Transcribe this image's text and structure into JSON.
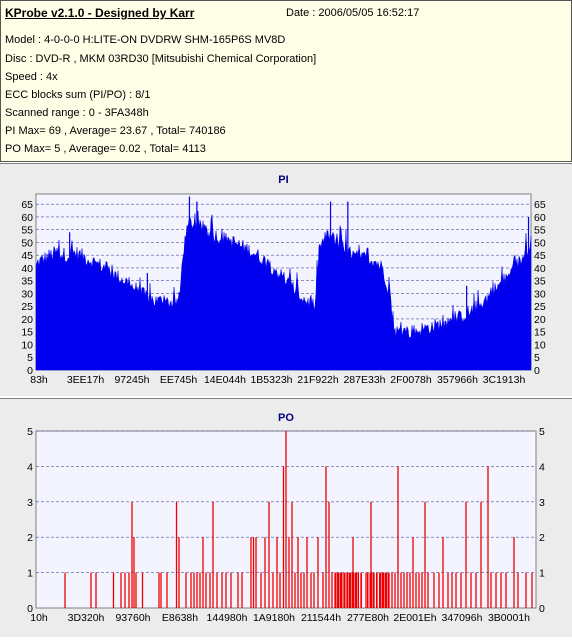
{
  "header": {
    "title": "KProbe v2.1.0 - Designed by Karr",
    "date": "Date : 2006/05/05 16:52:17",
    "lines": [
      "Model : 4-0-0-0 H:LITE-ON DVDRW SHM-165P6S MV8D",
      "Disc : DVD-R , MKM 03RD30   [Mitsubishi Chemical Corporation]",
      "Speed : 4x",
      "ECC blocks sum (PI/PO) : 8/1",
      "Scanned range : 0 - 3FA348h",
      "PI Max= 69 , Average= 23.67 , Total= 740186",
      "PO Max= 5 , Average= 0.02 , Total= 4113"
    ]
  },
  "colors": {
    "pi_series": "#0000ee",
    "po_series": "#ee0000",
    "chart_title": "#000080",
    "plot_bg": "#f4f4ff",
    "grid": "#5050a0",
    "panel_bg": "#ececec"
  },
  "chart_data": [
    {
      "type": "area",
      "title": "PI",
      "xlabel": "",
      "ylabel": "",
      "ylim": [
        0,
        69
      ],
      "yticks": [
        0,
        5,
        10,
        15,
        20,
        25,
        30,
        35,
        40,
        45,
        50,
        55,
        60,
        65
      ],
      "xtick_labels": [
        "83h",
        "3EE17h",
        "97245h",
        "EE745h",
        "14E044h",
        "1B5323h",
        "21F922h",
        "287E33h",
        "2F0078h",
        "357966h",
        "3C1913h"
      ],
      "grid": "horizontal dashed",
      "x_range_hex": [
        "0",
        "3FA348h"
      ],
      "profile": [
        [
          0,
          40
        ],
        [
          0.3,
          42
        ],
        [
          2,
          44
        ],
        [
          4,
          46
        ],
        [
          6,
          45
        ],
        [
          8,
          46
        ],
        [
          10,
          44
        ],
        [
          12,
          42
        ],
        [
          14,
          40
        ],
        [
          16,
          37
        ],
        [
          18,
          35
        ],
        [
          20,
          32
        ],
        [
          22,
          29
        ],
        [
          24,
          27
        ],
        [
          26,
          27
        ],
        [
          28,
          26
        ],
        [
          29,
          28
        ],
        [
          29.8,
          48
        ],
        [
          31,
          58
        ],
        [
          33,
          56
        ],
        [
          35,
          54
        ],
        [
          37,
          52
        ],
        [
          40,
          50
        ],
        [
          42,
          48
        ],
        [
          44,
          46
        ],
        [
          46,
          43
        ],
        [
          48,
          40
        ],
        [
          50,
          36
        ],
        [
          52,
          32
        ],
        [
          54,
          28
        ],
        [
          55.5,
          26
        ],
        [
          56.5,
          25
        ],
        [
          57.2,
          48
        ],
        [
          59,
          53
        ],
        [
          61,
          50
        ],
        [
          63,
          46
        ],
        [
          65,
          44
        ],
        [
          67,
          44
        ],
        [
          69,
          42
        ],
        [
          70,
          40
        ],
        [
          71.5,
          30
        ],
        [
          72.3,
          15
        ],
        [
          74,
          15
        ],
        [
          76,
          15
        ],
        [
          78,
          16
        ],
        [
          80,
          17
        ],
        [
          82,
          18
        ],
        [
          84,
          19
        ],
        [
          86,
          21
        ],
        [
          88,
          23
        ],
        [
          90,
          26
        ],
        [
          92,
          30
        ],
        [
          94,
          34
        ],
        [
          96,
          38
        ],
        [
          97.5,
          42
        ],
        [
          99,
          45
        ],
        [
          100,
          52
        ]
      ],
      "peaks": [
        {
          "x": 6.8,
          "y": 54
        },
        {
          "x": 22.5,
          "y": 38
        },
        {
          "x": 31,
          "y": 68
        },
        {
          "x": 32.5,
          "y": 66
        },
        {
          "x": 34,
          "y": 57
        },
        {
          "x": 59.5,
          "y": 66
        },
        {
          "x": 63,
          "y": 66
        },
        {
          "x": 87,
          "y": 33
        },
        {
          "x": 99.5,
          "y": 60
        }
      ]
    },
    {
      "type": "bar",
      "title": "PO",
      "xlabel": "",
      "ylabel": "",
      "ylim": [
        0,
        5
      ],
      "yticks": [
        0,
        1,
        2,
        3,
        4,
        5
      ],
      "xtick_labels": [
        "10h",
        "3D320h",
        "93760h",
        "E8638h",
        "144980h",
        "1A9180h",
        "211544h",
        "277E80h",
        "2E001Eh",
        "347096h",
        "3B0001h"
      ],
      "grid": "horizontal dashed",
      "spikes": [
        {
          "x": 5.8,
          "y": 1
        },
        {
          "x": 11.0,
          "y": 1
        },
        {
          "x": 12.0,
          "y": 1
        },
        {
          "x": 15.5,
          "y": 1
        },
        {
          "x": 17.0,
          "y": 1
        },
        {
          "x": 17.8,
          "y": 1
        },
        {
          "x": 18.6,
          "y": 1
        },
        {
          "x": 19.2,
          "y": 3
        },
        {
          "x": 19.6,
          "y": 2
        },
        {
          "x": 20.0,
          "y": 1
        },
        {
          "x": 21.3,
          "y": 1
        },
        {
          "x": 24.6,
          "y": 1
        },
        {
          "x": 25.0,
          "y": 1
        },
        {
          "x": 26.2,
          "y": 1
        },
        {
          "x": 28.1,
          "y": 3
        },
        {
          "x": 28.6,
          "y": 2
        },
        {
          "x": 30.0,
          "y": 1
        },
        {
          "x": 31.0,
          "y": 1
        },
        {
          "x": 31.6,
          "y": 1
        },
        {
          "x": 32.2,
          "y": 1
        },
        {
          "x": 32.8,
          "y": 1
        },
        {
          "x": 33.4,
          "y": 2
        },
        {
          "x": 34.0,
          "y": 1
        },
        {
          "x": 34.8,
          "y": 1
        },
        {
          "x": 35.4,
          "y": 3
        },
        {
          "x": 36.2,
          "y": 1
        },
        {
          "x": 37.2,
          "y": 1
        },
        {
          "x": 38.0,
          "y": 1
        },
        {
          "x": 39.0,
          "y": 1
        },
        {
          "x": 40.4,
          "y": 1
        },
        {
          "x": 41.2,
          "y": 1
        },
        {
          "x": 43.0,
          "y": 2
        },
        {
          "x": 43.5,
          "y": 2
        },
        {
          "x": 44.0,
          "y": 2
        },
        {
          "x": 45.0,
          "y": 1
        },
        {
          "x": 45.8,
          "y": 2
        },
        {
          "x": 46.6,
          "y": 3
        },
        {
          "x": 47.4,
          "y": 1
        },
        {
          "x": 48.2,
          "y": 2
        },
        {
          "x": 48.8,
          "y": 1
        },
        {
          "x": 49.5,
          "y": 4
        },
        {
          "x": 50.0,
          "y": 5
        },
        {
          "x": 50.6,
          "y": 2
        },
        {
          "x": 51.2,
          "y": 3
        },
        {
          "x": 51.8,
          "y": 1
        },
        {
          "x": 52.4,
          "y": 2
        },
        {
          "x": 53.0,
          "y": 1
        },
        {
          "x": 53.6,
          "y": 1
        },
        {
          "x": 54.2,
          "y": 2
        },
        {
          "x": 55.0,
          "y": 1
        },
        {
          "x": 55.6,
          "y": 1
        },
        {
          "x": 56.4,
          "y": 2
        },
        {
          "x": 57.4,
          "y": 1
        },
        {
          "x": 58.0,
          "y": 4
        },
        {
          "x": 58.6,
          "y": 3
        },
        {
          "x": 59.2,
          "y": 1
        },
        {
          "x": 59.8,
          "y": 1
        },
        {
          "x": 60.4,
          "y": 1
        },
        {
          "x": 61.0,
          "y": 1
        },
        {
          "x": 61.6,
          "y": 1
        },
        {
          "x": 62.2,
          "y": 1
        },
        {
          "x": 62.8,
          "y": 1
        },
        {
          "x": 63.4,
          "y": 2
        },
        {
          "x": 64.0,
          "y": 1
        },
        {
          "x": 65.0,
          "y": 1
        },
        {
          "x": 66.0,
          "y": 1
        },
        {
          "x": 67.0,
          "y": 3
        },
        {
          "x": 67.6,
          "y": 1
        },
        {
          "x": 68.2,
          "y": 1
        },
        {
          "x": 68.8,
          "y": 1
        },
        {
          "x": 69.4,
          "y": 1
        },
        {
          "x": 70.0,
          "y": 1
        },
        {
          "x": 70.6,
          "y": 1
        },
        {
          "x": 71.2,
          "y": 1
        },
        {
          "x": 71.8,
          "y": 1
        },
        {
          "x": 72.4,
          "y": 4
        },
        {
          "x": 73.0,
          "y": 1
        },
        {
          "x": 73.6,
          "y": 1
        },
        {
          "x": 74.2,
          "y": 1
        },
        {
          "x": 74.8,
          "y": 1
        },
        {
          "x": 75.4,
          "y": 2
        },
        {
          "x": 76.0,
          "y": 1
        },
        {
          "x": 76.6,
          "y": 1
        },
        {
          "x": 77.2,
          "y": 1
        },
        {
          "x": 77.8,
          "y": 3
        },
        {
          "x": 78.4,
          "y": 1
        },
        {
          "x": 79.6,
          "y": 1
        },
        {
          "x": 80.6,
          "y": 1
        },
        {
          "x": 81.4,
          "y": 2
        },
        {
          "x": 82.4,
          "y": 1
        },
        {
          "x": 83.2,
          "y": 1
        },
        {
          "x": 84.0,
          "y": 1
        },
        {
          "x": 85.0,
          "y": 1
        },
        {
          "x": 86.0,
          "y": 3
        },
        {
          "x": 87.0,
          "y": 1
        },
        {
          "x": 88.0,
          "y": 1
        },
        {
          "x": 89.0,
          "y": 3
        },
        {
          "x": 90.4,
          "y": 4
        },
        {
          "x": 91.0,
          "y": 1
        },
        {
          "x": 92.0,
          "y": 1
        },
        {
          "x": 93.0,
          "y": 1
        },
        {
          "x": 94.0,
          "y": 1
        },
        {
          "x": 95.6,
          "y": 2
        },
        {
          "x": 96.4,
          "y": 1
        },
        {
          "x": 98.0,
          "y": 1
        },
        {
          "x": 99.2,
          "y": 1
        }
      ],
      "dense_runs": [
        [
          60.0,
          71.0,
          1
        ]
      ]
    }
  ]
}
